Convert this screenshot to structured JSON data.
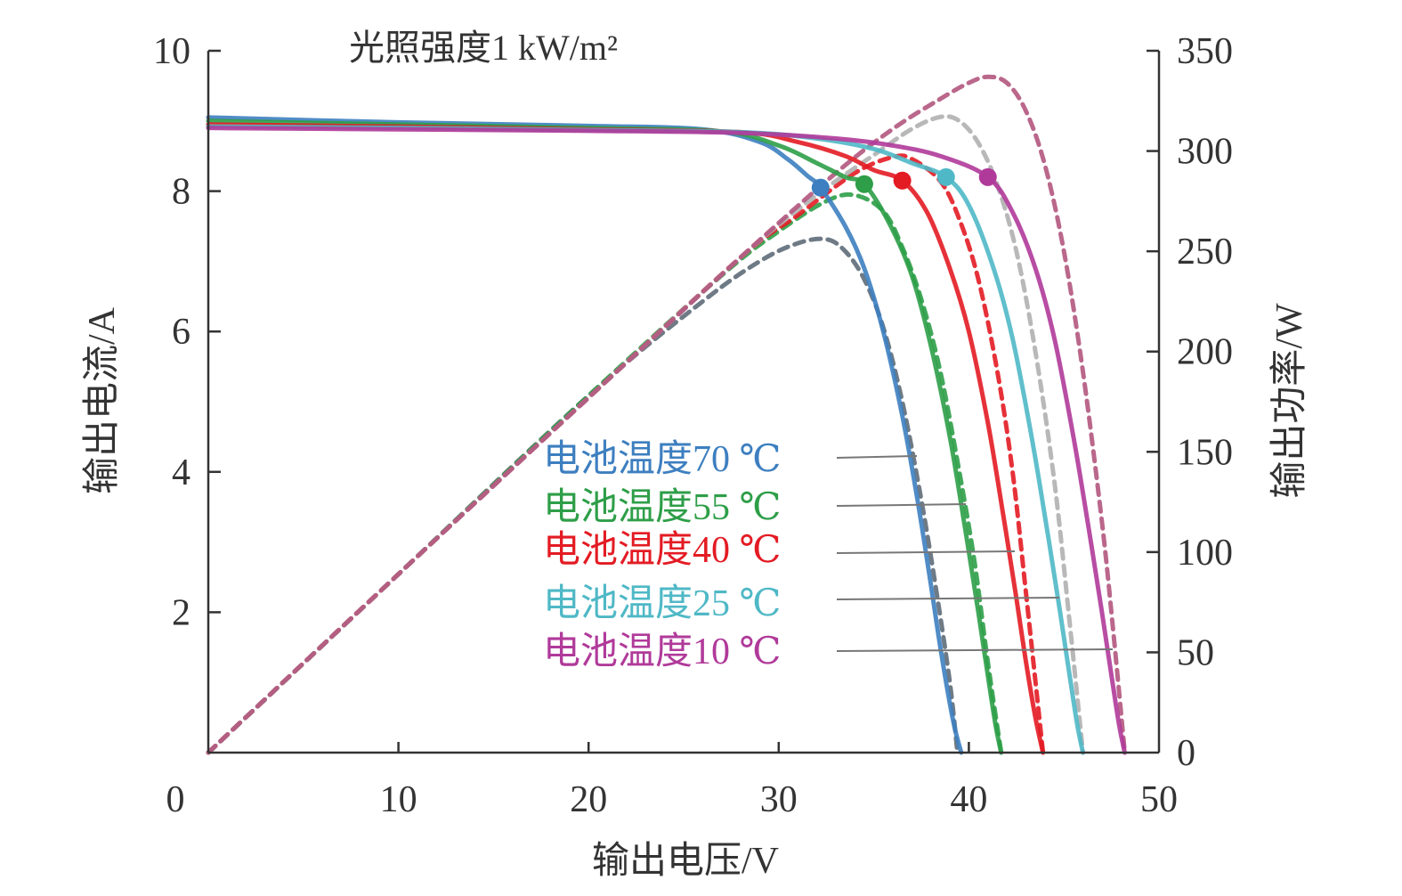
{
  "chart_data": {
    "type": "line",
    "annotation": "光照强度1 kW/m²",
    "xlabel": "输出电压/V",
    "ylabel_left": "输出电流/A",
    "ylabel_right": "输出功率/W",
    "xlim": [
      0,
      50
    ],
    "ylim_left": [
      0,
      10
    ],
    "ylim_right": [
      0,
      350
    ],
    "x_ticks": [
      "0",
      "10",
      "20",
      "30",
      "40",
      "50"
    ],
    "y_left_ticks": [
      "10",
      "8",
      "6",
      "4",
      "2"
    ],
    "y_right_ticks": [
      "350",
      "300",
      "250",
      "200",
      "150",
      "100",
      "50",
      "0"
    ],
    "grid": false,
    "legend_position": "center",
    "series": [
      {
        "name": "电池温度70 ℃",
        "color": "#3d7fc0",
        "power_color": "#5e6b78",
        "current": {
          "x": [
            0,
            10,
            20,
            26,
            29,
            30.5,
            31.5,
            32.2,
            33.5,
            34.5,
            35.5,
            36.5,
            37.3,
            38.0,
            38.5,
            39.0,
            39.3,
            39.6
          ],
          "y": [
            9.05,
            8.98,
            8.93,
            8.88,
            8.7,
            8.45,
            8.22,
            8.05,
            7.5,
            6.9,
            6.0,
            4.8,
            3.6,
            2.4,
            1.5,
            0.7,
            0.3,
            0
          ]
        },
        "power": {
          "x": [
            0,
            10,
            20,
            26,
            29,
            31,
            32.5,
            33.5,
            34.5,
            35.5,
            36.5,
            37.5,
            38.3,
            39.0,
            39.4
          ],
          "y": [
            0,
            89,
            178,
            225,
            245,
            254,
            256,
            250,
            236,
            212,
            175,
            126,
            80,
            35,
            0
          ]
        },
        "mpp": {
          "x": 32.2,
          "current": 8.05
        }
      },
      {
        "name": "电池温度55 ℃",
        "color": "#2e9e48",
        "power_color": "#2e9e48",
        "current": {
          "x": [
            0,
            10,
            20,
            27,
            30,
            32,
            33.5,
            34.5,
            35.8,
            37,
            38,
            39,
            39.8,
            40.5,
            41.0,
            41.4,
            41.7
          ],
          "y": [
            9.0,
            8.95,
            8.9,
            8.85,
            8.65,
            8.4,
            8.2,
            8.1,
            7.55,
            6.8,
            5.8,
            4.5,
            3.2,
            2.0,
            1.1,
            0.4,
            0
          ]
        },
        "power": {
          "x": [
            0,
            10,
            20,
            27,
            30,
            32.5,
            34,
            35.5,
            36.5,
            37.5,
            38.5,
            39.5,
            40.3,
            41.0,
            41.7
          ],
          "y": [
            0,
            89,
            178,
            238,
            260,
            275,
            278,
            270,
            252,
            226,
            190,
            140,
            95,
            45,
            0
          ]
        },
        "mpp": {
          "x": 34.5,
          "current": 8.1
        }
      },
      {
        "name": "电池温度40 ℃",
        "color": "#e31b23",
        "power_color": "#e31b23",
        "current": {
          "x": [
            0,
            10,
            20,
            28,
            31,
            33.5,
            35,
            36.5,
            37.8,
            39,
            40,
            41,
            41.8,
            42.5,
            43.0,
            43.5,
            43.9
          ],
          "y": [
            8.95,
            8.92,
            8.88,
            8.84,
            8.7,
            8.5,
            8.3,
            8.15,
            7.7,
            6.9,
            6.0,
            4.7,
            3.4,
            2.2,
            1.3,
            0.5,
            0
          ]
        },
        "power": {
          "x": [
            0,
            10,
            20,
            28,
            31,
            34,
            36,
            37,
            38.5,
            39.5,
            40.5,
            41.5,
            42.3,
            43.0,
            43.9
          ],
          "y": [
            0,
            89,
            177,
            247,
            268,
            289,
            297,
            296,
            285,
            266,
            236,
            190,
            140,
            80,
            0
          ]
        },
        "mpp": {
          "x": 36.5,
          "current": 8.15
        }
      },
      {
        "name": "电池温度25 ℃",
        "color": "#4fb8c6",
        "power_color": "#b0b0b0",
        "current": {
          "x": [
            0,
            10,
            20,
            28,
            32,
            35,
            37,
            38.8,
            40,
            41.3,
            42.3,
            43.3,
            44.1,
            44.8,
            45.3,
            45.7,
            46.0
          ],
          "y": [
            8.92,
            8.9,
            8.87,
            8.84,
            8.75,
            8.6,
            8.4,
            8.2,
            7.8,
            6.9,
            5.9,
            4.5,
            3.2,
            2.0,
            1.1,
            0.4,
            0
          ]
        },
        "power": {
          "x": [
            0,
            10,
            20,
            28,
            32,
            35,
            37,
            38.5,
            39.5,
            40.5,
            41.5,
            42.5,
            43.5,
            44.5,
            45.3,
            46.0
          ],
          "y": [
            0,
            89,
            177,
            247,
            278,
            298,
            311,
            317,
            315,
            304,
            283,
            250,
            200,
            135,
            65,
            0
          ]
        },
        "mpp": {
          "x": 38.8,
          "current": 8.2
        }
      },
      {
        "name": "电池温度10 ℃",
        "color": "#b03a9a",
        "power_color": "#b2577e",
        "current": {
          "x": [
            0,
            10,
            20,
            28,
            33,
            36,
            38.5,
            41,
            42.3,
            43.5,
            44.5,
            45.5,
            46.3,
            47.0,
            47.5,
            47.9,
            48.2
          ],
          "y": [
            8.9,
            8.88,
            8.86,
            8.83,
            8.75,
            8.65,
            8.5,
            8.2,
            7.7,
            6.9,
            5.9,
            4.5,
            3.2,
            2.0,
            1.1,
            0.4,
            0
          ]
        },
        "power": {
          "x": [
            0,
            10,
            20,
            28,
            33,
            36,
            38.5,
            40,
            41,
            42,
            43,
            44,
            45,
            46,
            47,
            47.6,
            48.2
          ],
          "y": [
            0,
            89,
            177,
            247,
            289,
            311,
            326,
            334,
            337,
            334,
            320,
            293,
            250,
            190,
            115,
            60,
            0
          ]
        },
        "mpp": {
          "x": 41.0,
          "current": 8.2
        }
      }
    ]
  }
}
